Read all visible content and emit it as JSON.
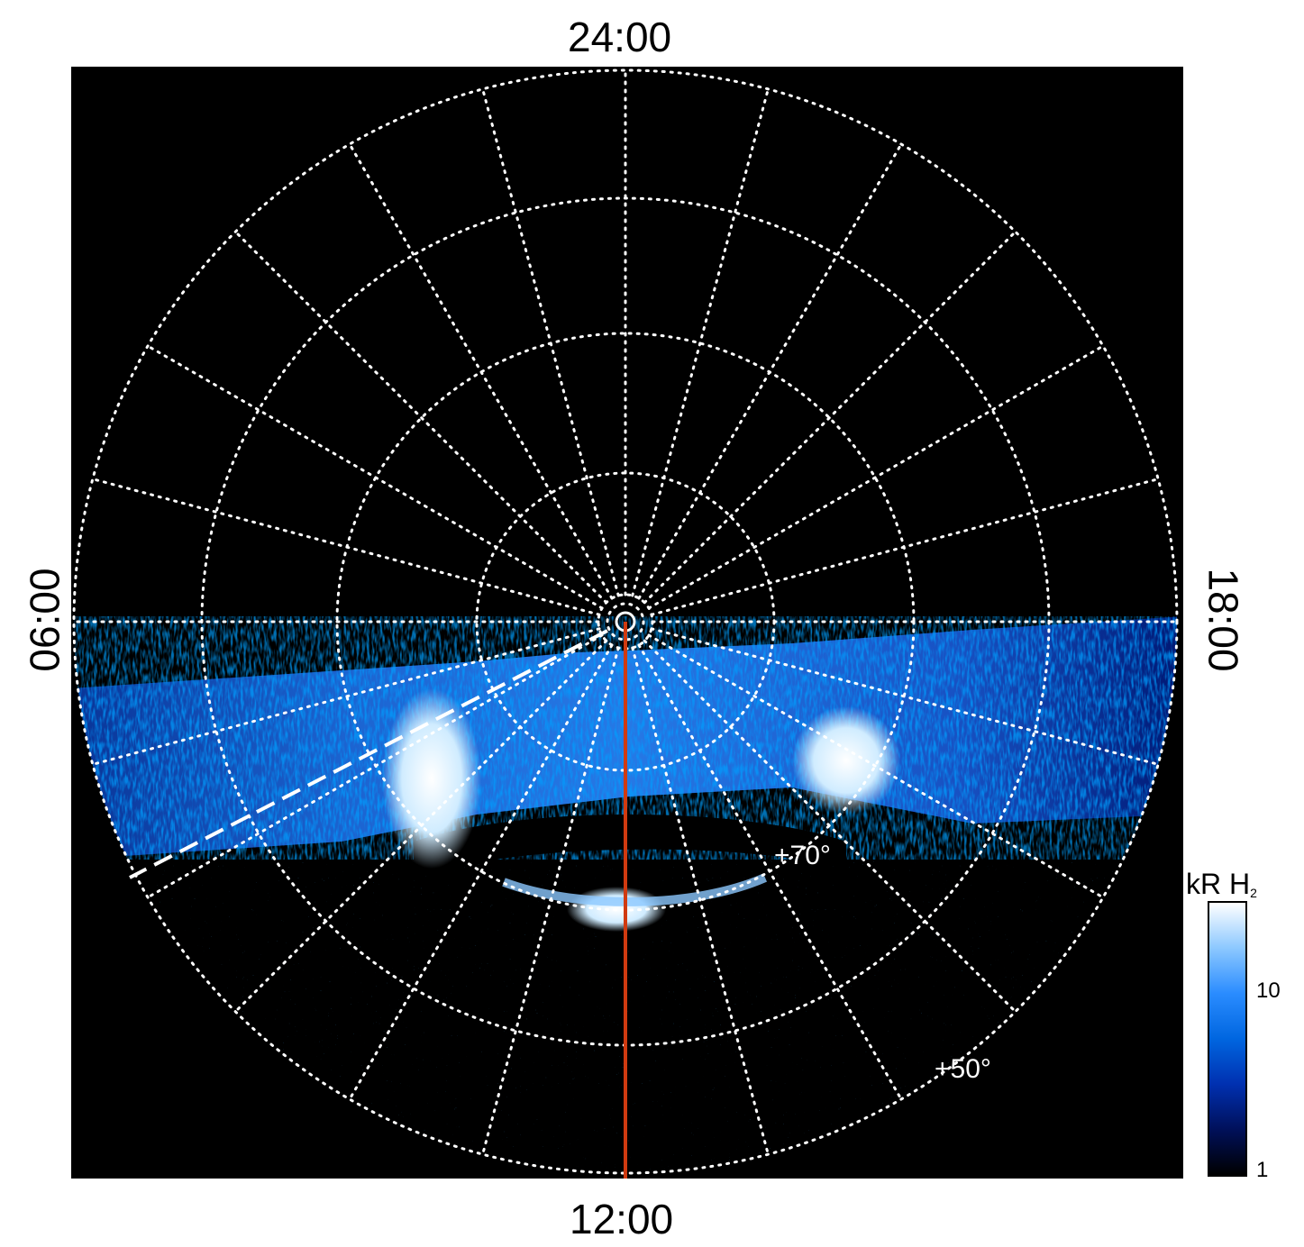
{
  "labels": {
    "top": "24:00",
    "bottom": "12:00",
    "left": "06:00",
    "right": "18:00"
  },
  "latitude_labels": {
    "inner": "+70°",
    "outer": "+50°"
  },
  "colorbar": {
    "title": "kR H",
    "title_subscript": "2",
    "tick_high": "10",
    "tick_low": "1",
    "colors": [
      "#000000",
      "#00105a",
      "#0030b0",
      "#0066e0",
      "#2a8cff",
      "#8cc8ff",
      "#ffffff"
    ]
  },
  "colors": {
    "background": "#000000",
    "grid": "#ffffff",
    "meridian_line": "#d03a10"
  }
}
